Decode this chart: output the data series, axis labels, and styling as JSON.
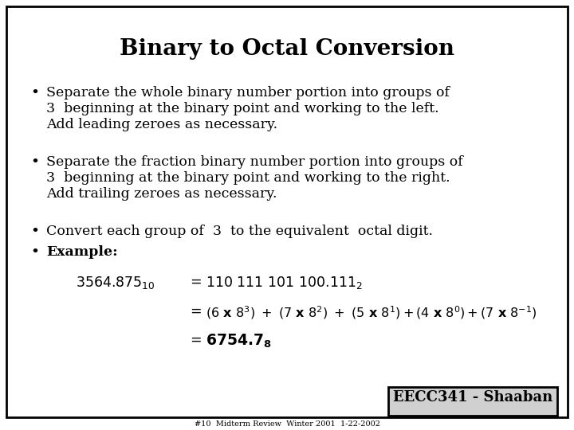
{
  "title": "Binary to Octal Conversion",
  "bg_color": "#ffffff",
  "border_color": "#000000",
  "text_color": "#000000",
  "title_fontsize": 20,
  "body_fontsize": 12.5,
  "bullet1_line1": "Separate the whole binary number portion into groups of",
  "bullet1_line2": "3  beginning at the binary point and working to the left.",
  "bullet1_line3": "Add leading zeroes as necessary.",
  "bullet2_line1": "Separate the fraction binary number portion into groups of",
  "bullet2_line2": "3  beginning at the binary point and working to the right.",
  "bullet2_line3": "Add trailing zeroes as necessary.",
  "bullet3": "Convert each group of  3  to the equivalent  octal digit.",
  "bullet4": "Example:",
  "footer_box": "EECC341 - Shaaban",
  "footer_sub": "#10  Midterm Review  Winter 2001  1-22-2002"
}
